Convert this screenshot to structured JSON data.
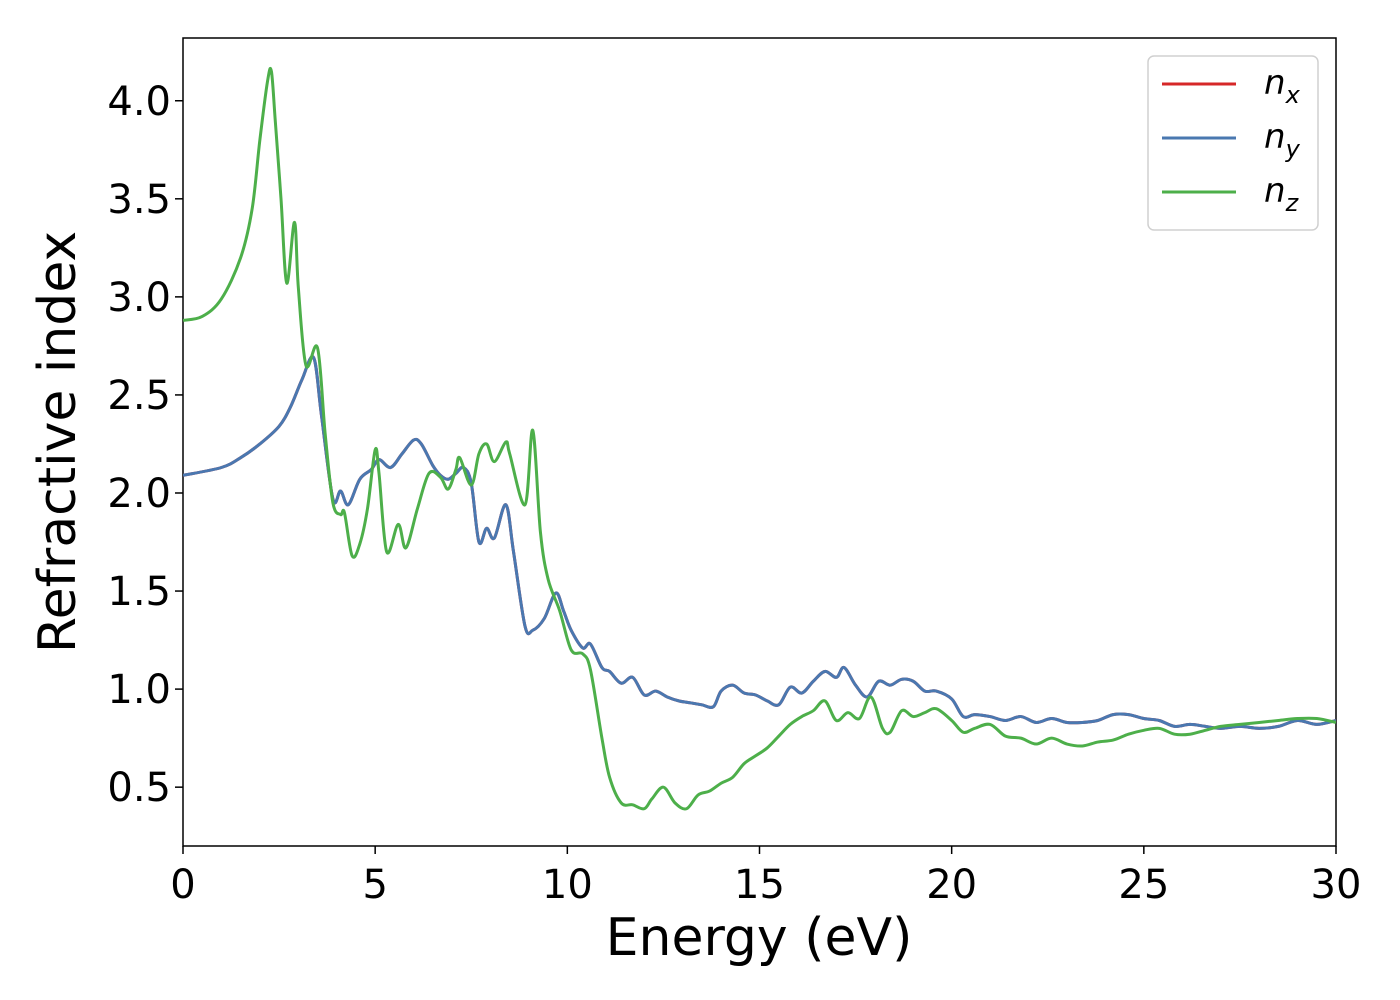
{
  "chart_data": {
    "type": "line",
    "title": "",
    "xlabel": "Energy (eV)",
    "ylabel": "Refractive index",
    "xlim": [
      0,
      30
    ],
    "ylim": [
      0.2,
      4.32
    ],
    "xticks": [
      0,
      5,
      10,
      15,
      20,
      25,
      30
    ],
    "yticks": [
      0.5,
      1.0,
      1.5,
      2.0,
      2.5,
      3.0,
      3.5,
      4.0
    ],
    "xtick_labels": [
      "0",
      "5",
      "10",
      "15",
      "20",
      "25",
      "30"
    ],
    "ytick_labels": [
      "0.5",
      "1.0",
      "1.5",
      "2.0",
      "2.5",
      "3.0",
      "3.5",
      "4.0"
    ],
    "grid": false,
    "legend_position": "top-right",
    "series": [
      {
        "name": "n",
        "subscript": "x",
        "color": "#d62728",
        "x": [
          0,
          1,
          1.5,
          2,
          2.5,
          2.8,
          3.1,
          3.4,
          3.6,
          3.9,
          4.1,
          4.3,
          4.6,
          4.9,
          5.1,
          5.4,
          5.7,
          6.0,
          6.2,
          6.5,
          6.7,
          6.9,
          7.1,
          7.3,
          7.5,
          7.7,
          7.9,
          8.1,
          8.4,
          8.6,
          8.9,
          9.1,
          9.4,
          9.7,
          9.9,
          10.1,
          10.4,
          10.6,
          10.9,
          11.1,
          11.4,
          11.7,
          12.0,
          12.3,
          12.6,
          12.9,
          13.2,
          13.5,
          13.8,
          14.0,
          14.3,
          14.6,
          14.9,
          15.2,
          15.5,
          15.8,
          16.1,
          16.4,
          16.7,
          17.0,
          17.2,
          17.5,
          17.8,
          18.1,
          18.4,
          18.7,
          19.0,
          19.3,
          19.6,
          20.0,
          20.3,
          20.6,
          21.0,
          21.4,
          21.8,
          22.2,
          22.6,
          23.0,
          23.4,
          23.8,
          24.2,
          24.6,
          25.0,
          25.4,
          25.8,
          26.2,
          26.6,
          27.0,
          27.5,
          28.0,
          28.5,
          29.0,
          29.5,
          30
        ],
        "values": [
          2.09,
          2.13,
          2.18,
          2.25,
          2.34,
          2.44,
          2.58,
          2.69,
          2.4,
          1.97,
          2.01,
          1.94,
          2.07,
          2.12,
          2.17,
          2.13,
          2.2,
          2.27,
          2.25,
          2.14,
          2.09,
          2.07,
          2.1,
          2.13,
          2.05,
          1.75,
          1.82,
          1.77,
          1.94,
          1.7,
          1.32,
          1.3,
          1.36,
          1.49,
          1.4,
          1.3,
          1.21,
          1.23,
          1.11,
          1.09,
          1.03,
          1.06,
          0.97,
          0.99,
          0.96,
          0.94,
          0.93,
          0.92,
          0.91,
          0.99,
          1.02,
          0.98,
          0.97,
          0.94,
          0.92,
          1.01,
          0.98,
          1.04,
          1.09,
          1.06,
          1.11,
          1.02,
          0.96,
          1.04,
          1.02,
          1.05,
          1.04,
          0.99,
          0.99,
          0.95,
          0.86,
          0.87,
          0.86,
          0.84,
          0.86,
          0.83,
          0.85,
          0.83,
          0.83,
          0.84,
          0.87,
          0.87,
          0.85,
          0.84,
          0.81,
          0.82,
          0.81,
          0.8,
          0.81,
          0.8,
          0.81,
          0.84,
          0.82,
          0.84
        ]
      },
      {
        "name": "n",
        "subscript": "y",
        "color": "#4a78b0",
        "x": [
          0,
          1,
          1.5,
          2,
          2.5,
          2.8,
          3.1,
          3.4,
          3.6,
          3.9,
          4.1,
          4.3,
          4.6,
          4.9,
          5.1,
          5.4,
          5.7,
          6.0,
          6.2,
          6.5,
          6.7,
          6.9,
          7.1,
          7.3,
          7.5,
          7.7,
          7.9,
          8.1,
          8.4,
          8.6,
          8.9,
          9.1,
          9.4,
          9.7,
          9.9,
          10.1,
          10.4,
          10.6,
          10.9,
          11.1,
          11.4,
          11.7,
          12.0,
          12.3,
          12.6,
          12.9,
          13.2,
          13.5,
          13.8,
          14.0,
          14.3,
          14.6,
          14.9,
          15.2,
          15.5,
          15.8,
          16.1,
          16.4,
          16.7,
          17.0,
          17.2,
          17.5,
          17.8,
          18.1,
          18.4,
          18.7,
          19.0,
          19.3,
          19.6,
          20.0,
          20.3,
          20.6,
          21.0,
          21.4,
          21.8,
          22.2,
          22.6,
          23.0,
          23.4,
          23.8,
          24.2,
          24.6,
          25.0,
          25.4,
          25.8,
          26.2,
          26.6,
          27.0,
          27.5,
          28.0,
          28.5,
          29.0,
          29.5,
          30
        ],
        "values": [
          2.09,
          2.13,
          2.18,
          2.25,
          2.34,
          2.44,
          2.58,
          2.69,
          2.4,
          1.97,
          2.01,
          1.94,
          2.07,
          2.12,
          2.17,
          2.13,
          2.2,
          2.27,
          2.25,
          2.14,
          2.09,
          2.07,
          2.1,
          2.13,
          2.05,
          1.75,
          1.82,
          1.77,
          1.94,
          1.7,
          1.32,
          1.3,
          1.36,
          1.49,
          1.4,
          1.3,
          1.21,
          1.23,
          1.11,
          1.09,
          1.03,
          1.06,
          0.97,
          0.99,
          0.96,
          0.94,
          0.93,
          0.92,
          0.91,
          0.99,
          1.02,
          0.98,
          0.97,
          0.94,
          0.92,
          1.01,
          0.98,
          1.04,
          1.09,
          1.06,
          1.11,
          1.02,
          0.96,
          1.04,
          1.02,
          1.05,
          1.04,
          0.99,
          0.99,
          0.95,
          0.86,
          0.87,
          0.86,
          0.84,
          0.86,
          0.83,
          0.85,
          0.83,
          0.83,
          0.84,
          0.87,
          0.87,
          0.85,
          0.84,
          0.81,
          0.82,
          0.81,
          0.8,
          0.81,
          0.8,
          0.81,
          0.84,
          0.82,
          0.84
        ]
      },
      {
        "name": "n",
        "subscript": "z",
        "color": "#4daf4a",
        "x": [
          0,
          0.5,
          1,
          1.5,
          1.8,
          2.0,
          2.2,
          2.3,
          2.4,
          2.55,
          2.7,
          2.9,
          3.0,
          3.2,
          3.5,
          3.7,
          3.9,
          4.1,
          4.2,
          4.4,
          4.6,
          4.8,
          5.0,
          5.1,
          5.3,
          5.6,
          5.8,
          6.1,
          6.4,
          6.7,
          6.9,
          7.1,
          7.2,
          7.5,
          7.7,
          7.9,
          8.1,
          8.4,
          8.5,
          8.9,
          9.1,
          9.3,
          9.5,
          9.8,
          10.1,
          10.4,
          10.6,
          10.9,
          11.1,
          11.4,
          11.7,
          12.0,
          12.2,
          12.5,
          12.8,
          13.1,
          13.4,
          13.7,
          14.0,
          14.3,
          14.6,
          14.9,
          15.2,
          15.5,
          15.8,
          16.1,
          16.4,
          16.7,
          17.0,
          17.3,
          17.6,
          17.9,
          18.2,
          18.4,
          18.7,
          19.0,
          19.3,
          19.6,
          20.0,
          20.3,
          20.6,
          21.0,
          21.4,
          21.8,
          22.2,
          22.6,
          23.0,
          23.4,
          23.8,
          24.2,
          24.6,
          25.0,
          25.4,
          25.8,
          26.2,
          26.6,
          27.0,
          27.5,
          28.0,
          28.5,
          29.0,
          29.5,
          30
        ],
        "values": [
          2.88,
          2.9,
          2.99,
          3.2,
          3.45,
          3.8,
          4.1,
          4.15,
          3.9,
          3.5,
          3.07,
          3.38,
          3.05,
          2.65,
          2.74,
          2.3,
          1.95,
          1.89,
          1.9,
          1.68,
          1.74,
          1.92,
          2.22,
          2.1,
          1.7,
          1.84,
          1.72,
          1.92,
          2.1,
          2.08,
          2.02,
          2.12,
          2.18,
          2.04,
          2.2,
          2.25,
          2.16,
          2.26,
          2.2,
          1.94,
          2.32,
          1.8,
          1.56,
          1.4,
          1.2,
          1.18,
          1.1,
          0.75,
          0.55,
          0.42,
          0.41,
          0.39,
          0.44,
          0.5,
          0.42,
          0.39,
          0.46,
          0.48,
          0.52,
          0.55,
          0.62,
          0.66,
          0.7,
          0.76,
          0.82,
          0.86,
          0.89,
          0.94,
          0.84,
          0.88,
          0.85,
          0.96,
          0.8,
          0.78,
          0.89,
          0.86,
          0.88,
          0.9,
          0.84,
          0.78,
          0.8,
          0.82,
          0.76,
          0.75,
          0.72,
          0.75,
          0.72,
          0.71,
          0.73,
          0.74,
          0.77,
          0.79,
          0.8,
          0.77,
          0.77,
          0.79,
          0.81,
          0.82,
          0.83,
          0.84,
          0.85,
          0.85,
          0.83
        ]
      }
    ]
  }
}
